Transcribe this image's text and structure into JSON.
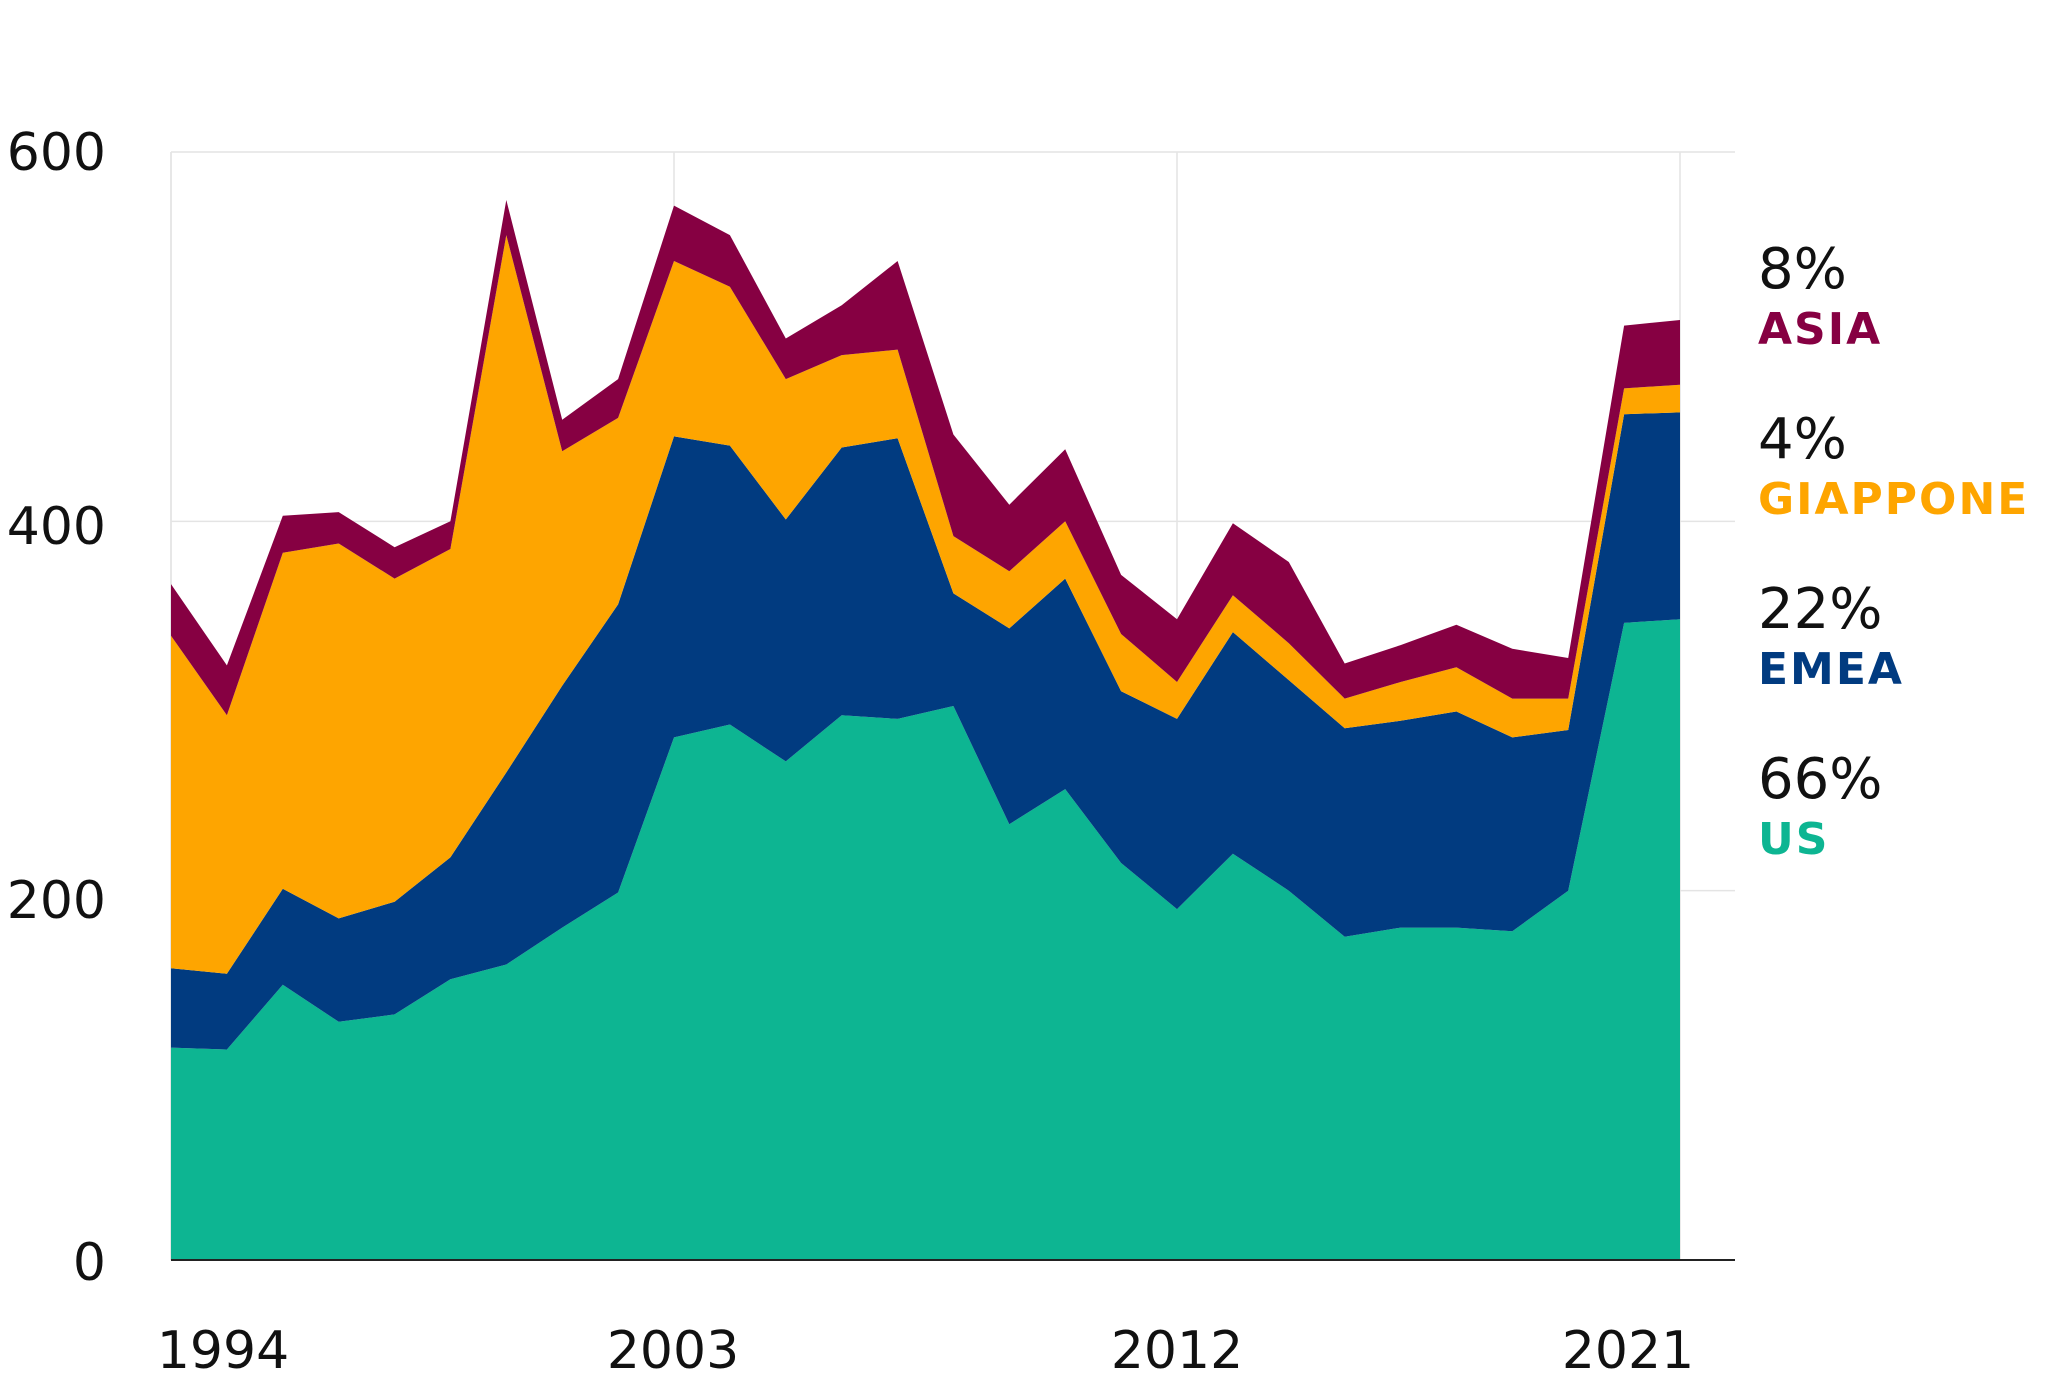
{
  "chart_data": {
    "type": "area",
    "stacked": true,
    "x": [
      1994,
      1995,
      1996,
      1997,
      1998,
      1999,
      2000,
      2001,
      2002,
      2003,
      2004,
      2005,
      2006,
      2007,
      2008,
      2009,
      2010,
      2011,
      2012,
      2013,
      2014,
      2015,
      2016,
      2017,
      2018,
      2019,
      2020,
      2021
    ],
    "xticks": [
      "1994",
      "2003",
      "2012",
      "2021"
    ],
    "yticks": [
      "0",
      "200",
      "400",
      "600"
    ],
    "ylim": [
      0,
      600
    ],
    "grid": true,
    "series": [
      {
        "name": "US",
        "color": "#0db592",
        "values": [
          115,
          114,
          149,
          129,
          133,
          152,
          160,
          180,
          199,
          283,
          290,
          270,
          295,
          293,
          300,
          236,
          255,
          215,
          190,
          220,
          200,
          175,
          180,
          180,
          178,
          200,
          345,
          347
        ]
      },
      {
        "name": "EMEA",
        "color": "#013b80",
        "values": [
          43,
          41,
          52,
          56,
          61,
          66,
          104,
          131,
          156,
          163,
          151,
          131,
          145,
          152,
          61,
          106,
          114,
          93,
          103,
          120,
          114,
          113,
          112,
          117,
          105,
          87,
          113,
          112
        ]
      },
      {
        "name": "GIAPPONE",
        "color": "#fea500",
        "values": [
          180,
          140,
          182,
          203,
          175,
          167,
          291,
          127,
          101,
          95,
          86,
          76,
          50,
          48,
          31,
          31,
          31,
          31,
          20,
          20,
          20,
          16,
          21,
          24,
          21,
          17,
          14,
          15
        ]
      },
      {
        "name": "ASIA",
        "color": "#860042",
        "values": [
          28,
          27,
          20,
          17,
          17,
          15,
          19,
          17,
          21,
          30,
          28,
          22,
          27,
          48,
          55,
          36,
          39,
          32,
          34,
          39,
          44,
          19,
          20,
          23,
          27,
          22,
          34,
          35
        ]
      }
    ],
    "legend": [
      {
        "pct": "8%",
        "name": "ASIA",
        "color": "#860042"
      },
      {
        "pct": "4%",
        "name": "GIAPPONE",
        "color": "#fea500"
      },
      {
        "pct": "22%",
        "name": "EMEA",
        "color": "#013b80"
      },
      {
        "pct": "66%",
        "name": "US",
        "color": "#0db592"
      }
    ]
  }
}
